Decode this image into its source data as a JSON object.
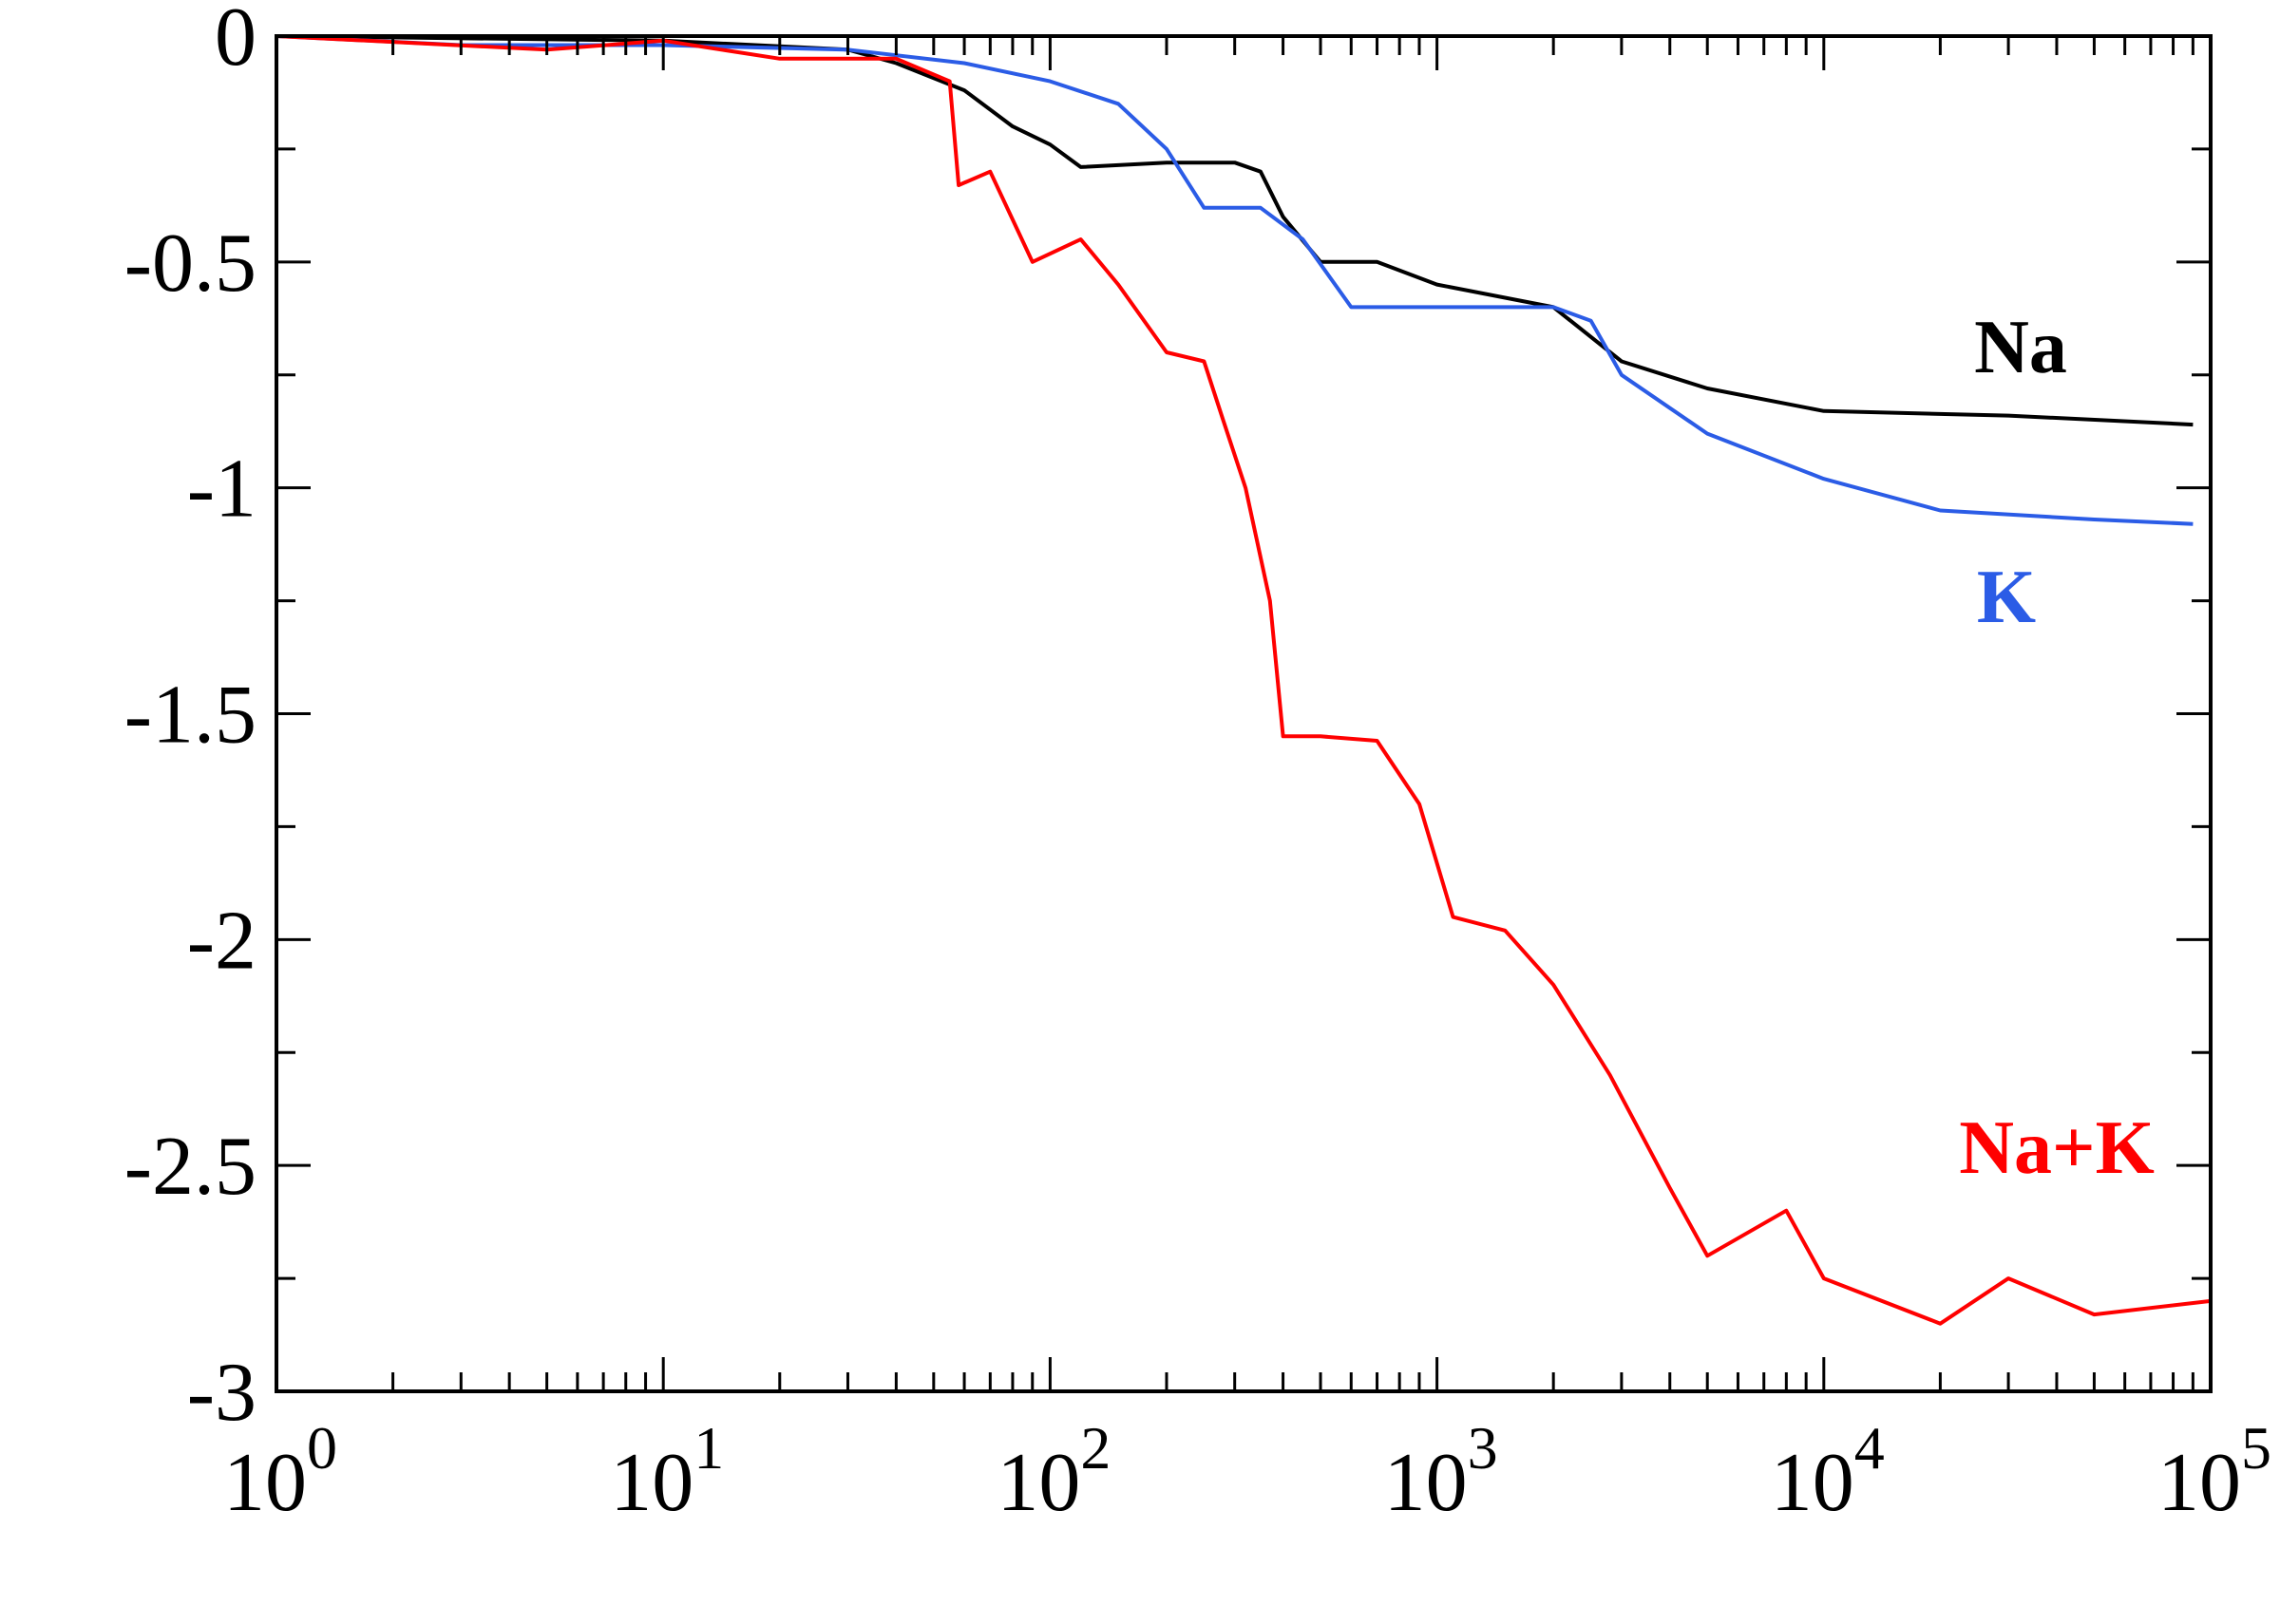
{
  "chart_data": {
    "type": "line",
    "title": "",
    "xlabel": "",
    "ylabel": "",
    "xscale": "log",
    "xlim": [
      1,
      100000
    ],
    "ylim": [
      -3,
      0
    ],
    "x_ticks": [
      {
        "base": "10",
        "exp": "0"
      },
      {
        "base": "10",
        "exp": "1"
      },
      {
        "base": "10",
        "exp": "2"
      },
      {
        "base": "10",
        "exp": "3"
      },
      {
        "base": "10",
        "exp": "4"
      },
      {
        "base": "10",
        "exp": "5"
      }
    ],
    "y_ticks": [
      "0",
      "-0.5",
      "-1",
      "-1.5",
      "-2",
      "-2.5",
      "-3"
    ],
    "y_tick_values": [
      0,
      -0.5,
      -1,
      -1.5,
      -2,
      -2.5,
      -3
    ],
    "grid": false,
    "legend": "inline labels at right end of curves",
    "series": [
      {
        "name": "Na",
        "color": "#000000",
        "x": [
          1,
          10,
          30,
          40,
          60,
          80,
          100,
          120,
          200,
          300,
          350,
          400,
          500,
          700,
          1000,
          2000,
          3000,
          5000,
          10000,
          30000,
          90000
        ],
        "y": [
          0,
          -0.01,
          -0.03,
          -0.06,
          -0.12,
          -0.2,
          -0.24,
          -0.29,
          -0.28,
          -0.28,
          -0.3,
          -0.4,
          -0.5,
          -0.5,
          -0.55,
          -0.6,
          -0.72,
          -0.78,
          -0.83,
          -0.84,
          -0.86
        ]
      },
      {
        "name": "K",
        "color": "#2b5ce6",
        "x": [
          1,
          3,
          10,
          30,
          60,
          100,
          150,
          200,
          250,
          350,
          450,
          600,
          1000,
          2000,
          2500,
          3000,
          5000,
          10000,
          20000,
          50000,
          90000
        ],
        "y": [
          0,
          -0.02,
          -0.02,
          -0.03,
          -0.06,
          -0.1,
          -0.15,
          -0.25,
          -0.38,
          -0.38,
          -0.45,
          -0.6,
          -0.6,
          -0.6,
          -0.63,
          -0.75,
          -0.88,
          -0.98,
          -1.05,
          -1.07,
          -1.08
        ]
      },
      {
        "name": "Na+K",
        "color": "#ff0000",
        "x": [
          1,
          5,
          10,
          20,
          40,
          55,
          58,
          70,
          90,
          120,
          150,
          200,
          250,
          280,
          320,
          370,
          400,
          500,
          700,
          900,
          1100,
          1500,
          2000,
          2800,
          4000,
          5000,
          8000,
          10000,
          20000,
          30000,
          50000,
          100000
        ],
        "y": [
          0,
          -0.03,
          -0.01,
          -0.05,
          -0.05,
          -0.1,
          -0.33,
          -0.3,
          -0.5,
          -0.45,
          -0.55,
          -0.7,
          -0.72,
          -0.85,
          -1.0,
          -1.25,
          -1.55,
          -1.55,
          -1.56,
          -1.7,
          -1.95,
          -1.98,
          -2.1,
          -2.3,
          -2.55,
          -2.7,
          -2.6,
          -2.75,
          -2.85,
          -2.75,
          -2.83,
          -2.8
        ]
      }
    ]
  }
}
